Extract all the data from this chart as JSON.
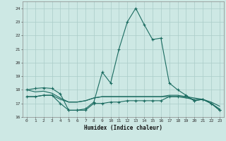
{
  "xlabel": "Humidex (Indice chaleur)",
  "x": [
    0,
    1,
    2,
    3,
    4,
    5,
    6,
    7,
    8,
    9,
    10,
    11,
    12,
    13,
    14,
    15,
    16,
    17,
    18,
    19,
    20,
    21,
    22,
    23
  ],
  "series1": [
    18.0,
    18.1,
    18.15,
    18.1,
    17.7,
    16.5,
    16.5,
    16.6,
    17.1,
    19.3,
    18.5,
    21.0,
    23.0,
    24.0,
    22.8,
    21.7,
    21.8,
    18.5,
    18.0,
    17.6,
    17.2,
    17.3,
    17.0,
    16.5
  ],
  "series2": [
    18.0,
    17.85,
    17.9,
    17.75,
    17.4,
    17.1,
    17.1,
    17.2,
    17.4,
    17.5,
    17.5,
    17.5,
    17.5,
    17.5,
    17.5,
    17.5,
    17.5,
    17.6,
    17.6,
    17.5,
    17.4,
    17.3,
    17.1,
    16.8
  ],
  "series3": [
    17.5,
    17.5,
    17.6,
    17.6,
    17.3,
    17.1,
    17.1,
    17.2,
    17.4,
    17.5,
    17.5,
    17.5,
    17.5,
    17.5,
    17.5,
    17.5,
    17.5,
    17.5,
    17.5,
    17.4,
    17.3,
    17.3,
    17.0,
    16.6
  ],
  "series4": [
    17.5,
    17.5,
    17.6,
    17.6,
    17.0,
    16.5,
    16.5,
    16.5,
    17.0,
    17.0,
    17.1,
    17.1,
    17.2,
    17.2,
    17.2,
    17.2,
    17.2,
    17.5,
    17.5,
    17.5,
    17.2,
    17.3,
    17.0,
    16.5
  ],
  "ylim": [
    16,
    24.5
  ],
  "yticks": [
    16,
    17,
    18,
    19,
    20,
    21,
    22,
    23,
    24
  ],
  "bg_color": "#cde8e4",
  "grid_color": "#aaccc8",
  "line_color": "#1a6b60"
}
